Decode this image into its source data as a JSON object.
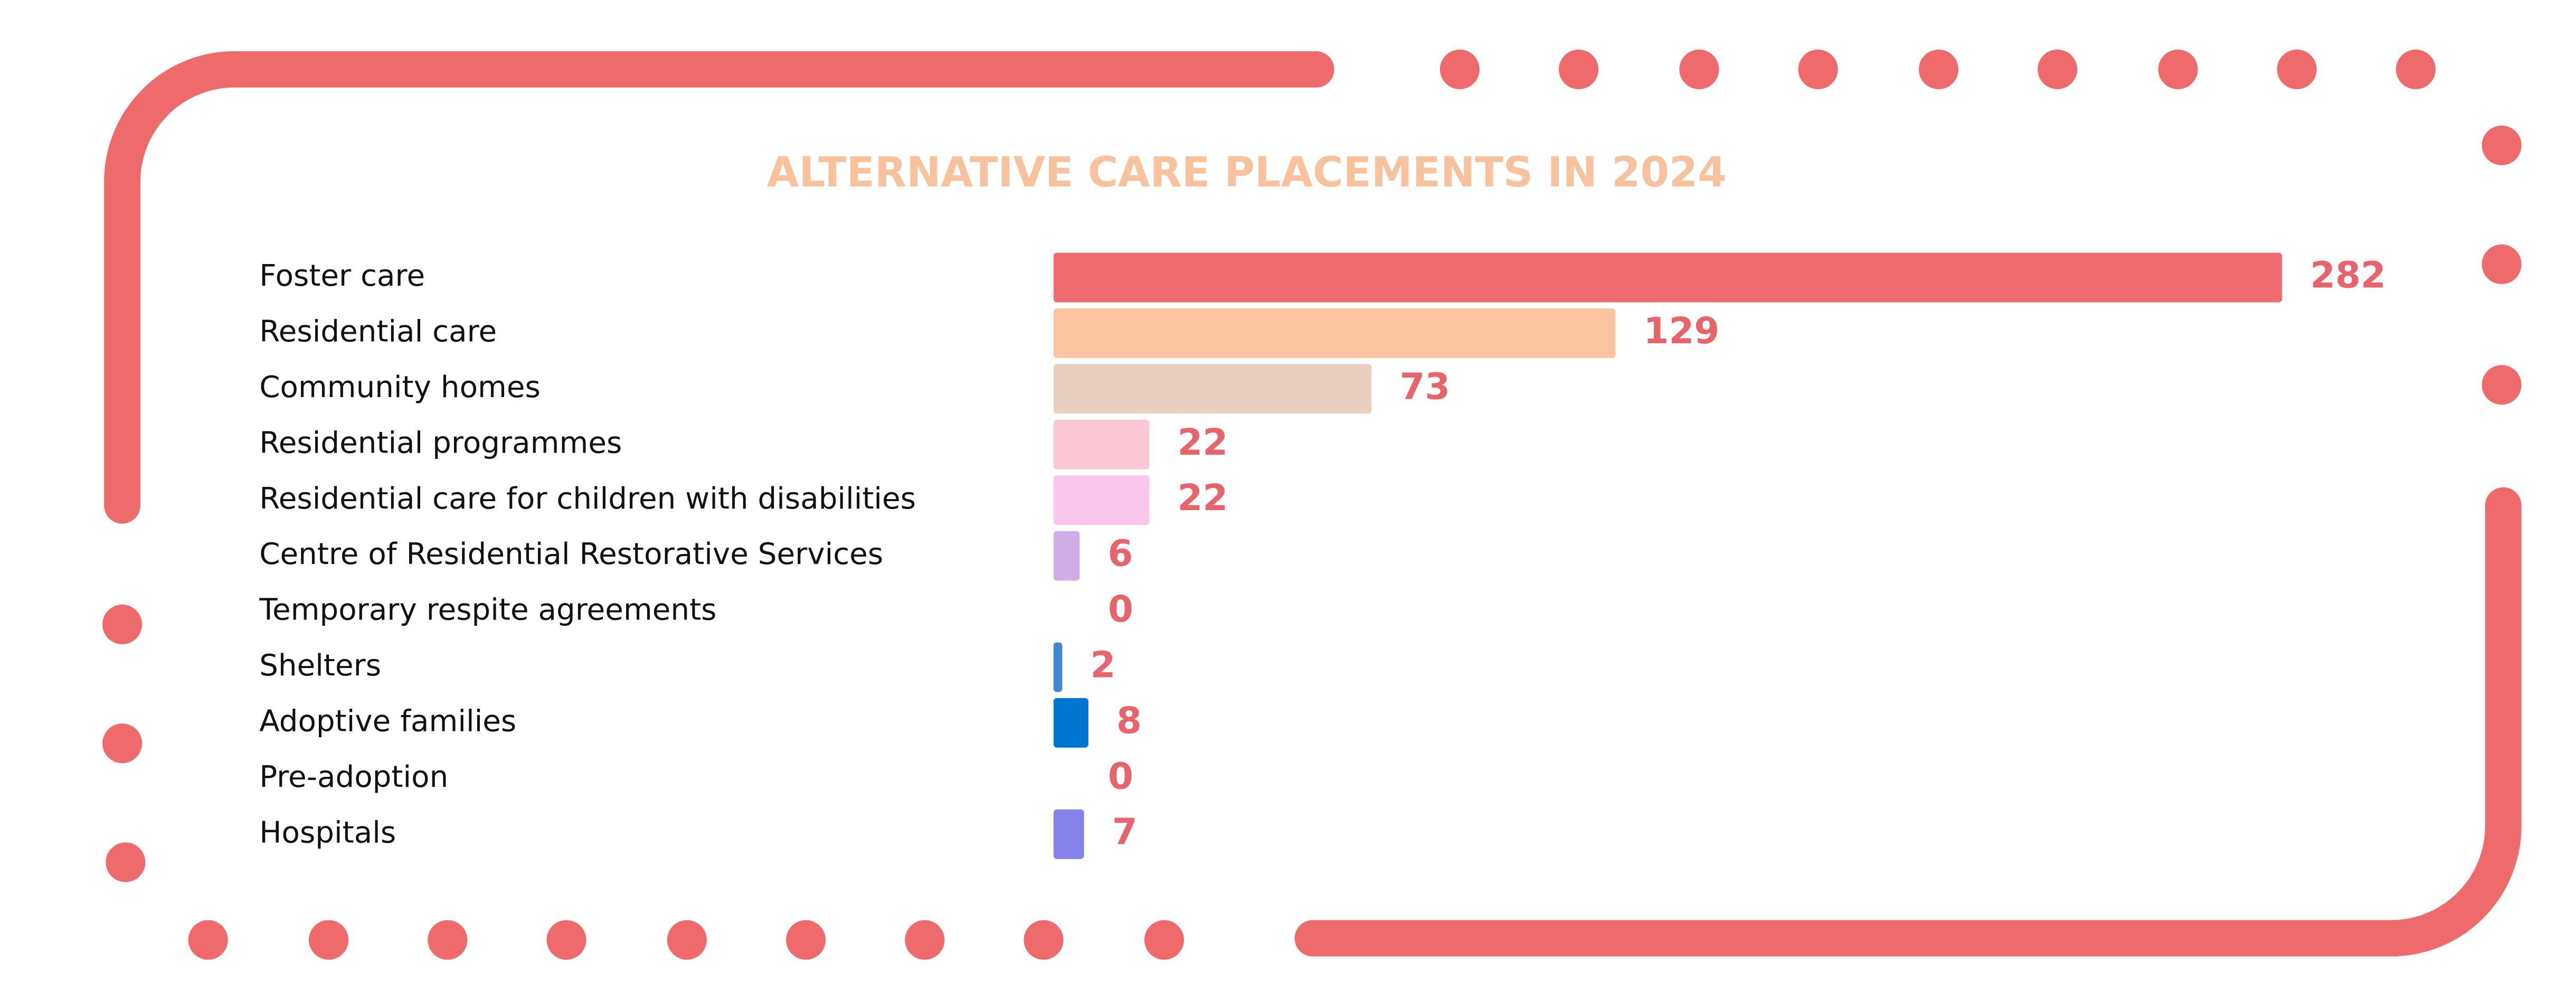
{
  "chart_data": {
    "type": "bar",
    "orientation": "horizontal",
    "title": "ALTERNATIVE CARE PLACEMENTS IN 2024",
    "categories": [
      "Foster care",
      "Residential care",
      "Community homes",
      "Residential programmes",
      "Residential care for children with disabilities",
      "Centre of Residential Restorative Services",
      "Temporary respite agreements",
      "Shelters",
      "Adoptive families",
      "Pre-adoption",
      "Hospitals"
    ],
    "values": [
      282,
      129,
      73,
      22,
      22,
      6,
      0,
      2,
      8,
      0,
      7
    ],
    "colors": [
      "#f06b6d",
      "#f9c49f",
      "#e8cfc0",
      "#fdc8d6",
      "#fbc6ec",
      "#cfaee7",
      "#9fc4ea",
      "#3f86d6",
      "#0076d4",
      "#5a9be0",
      "#8682ec"
    ]
  }
}
